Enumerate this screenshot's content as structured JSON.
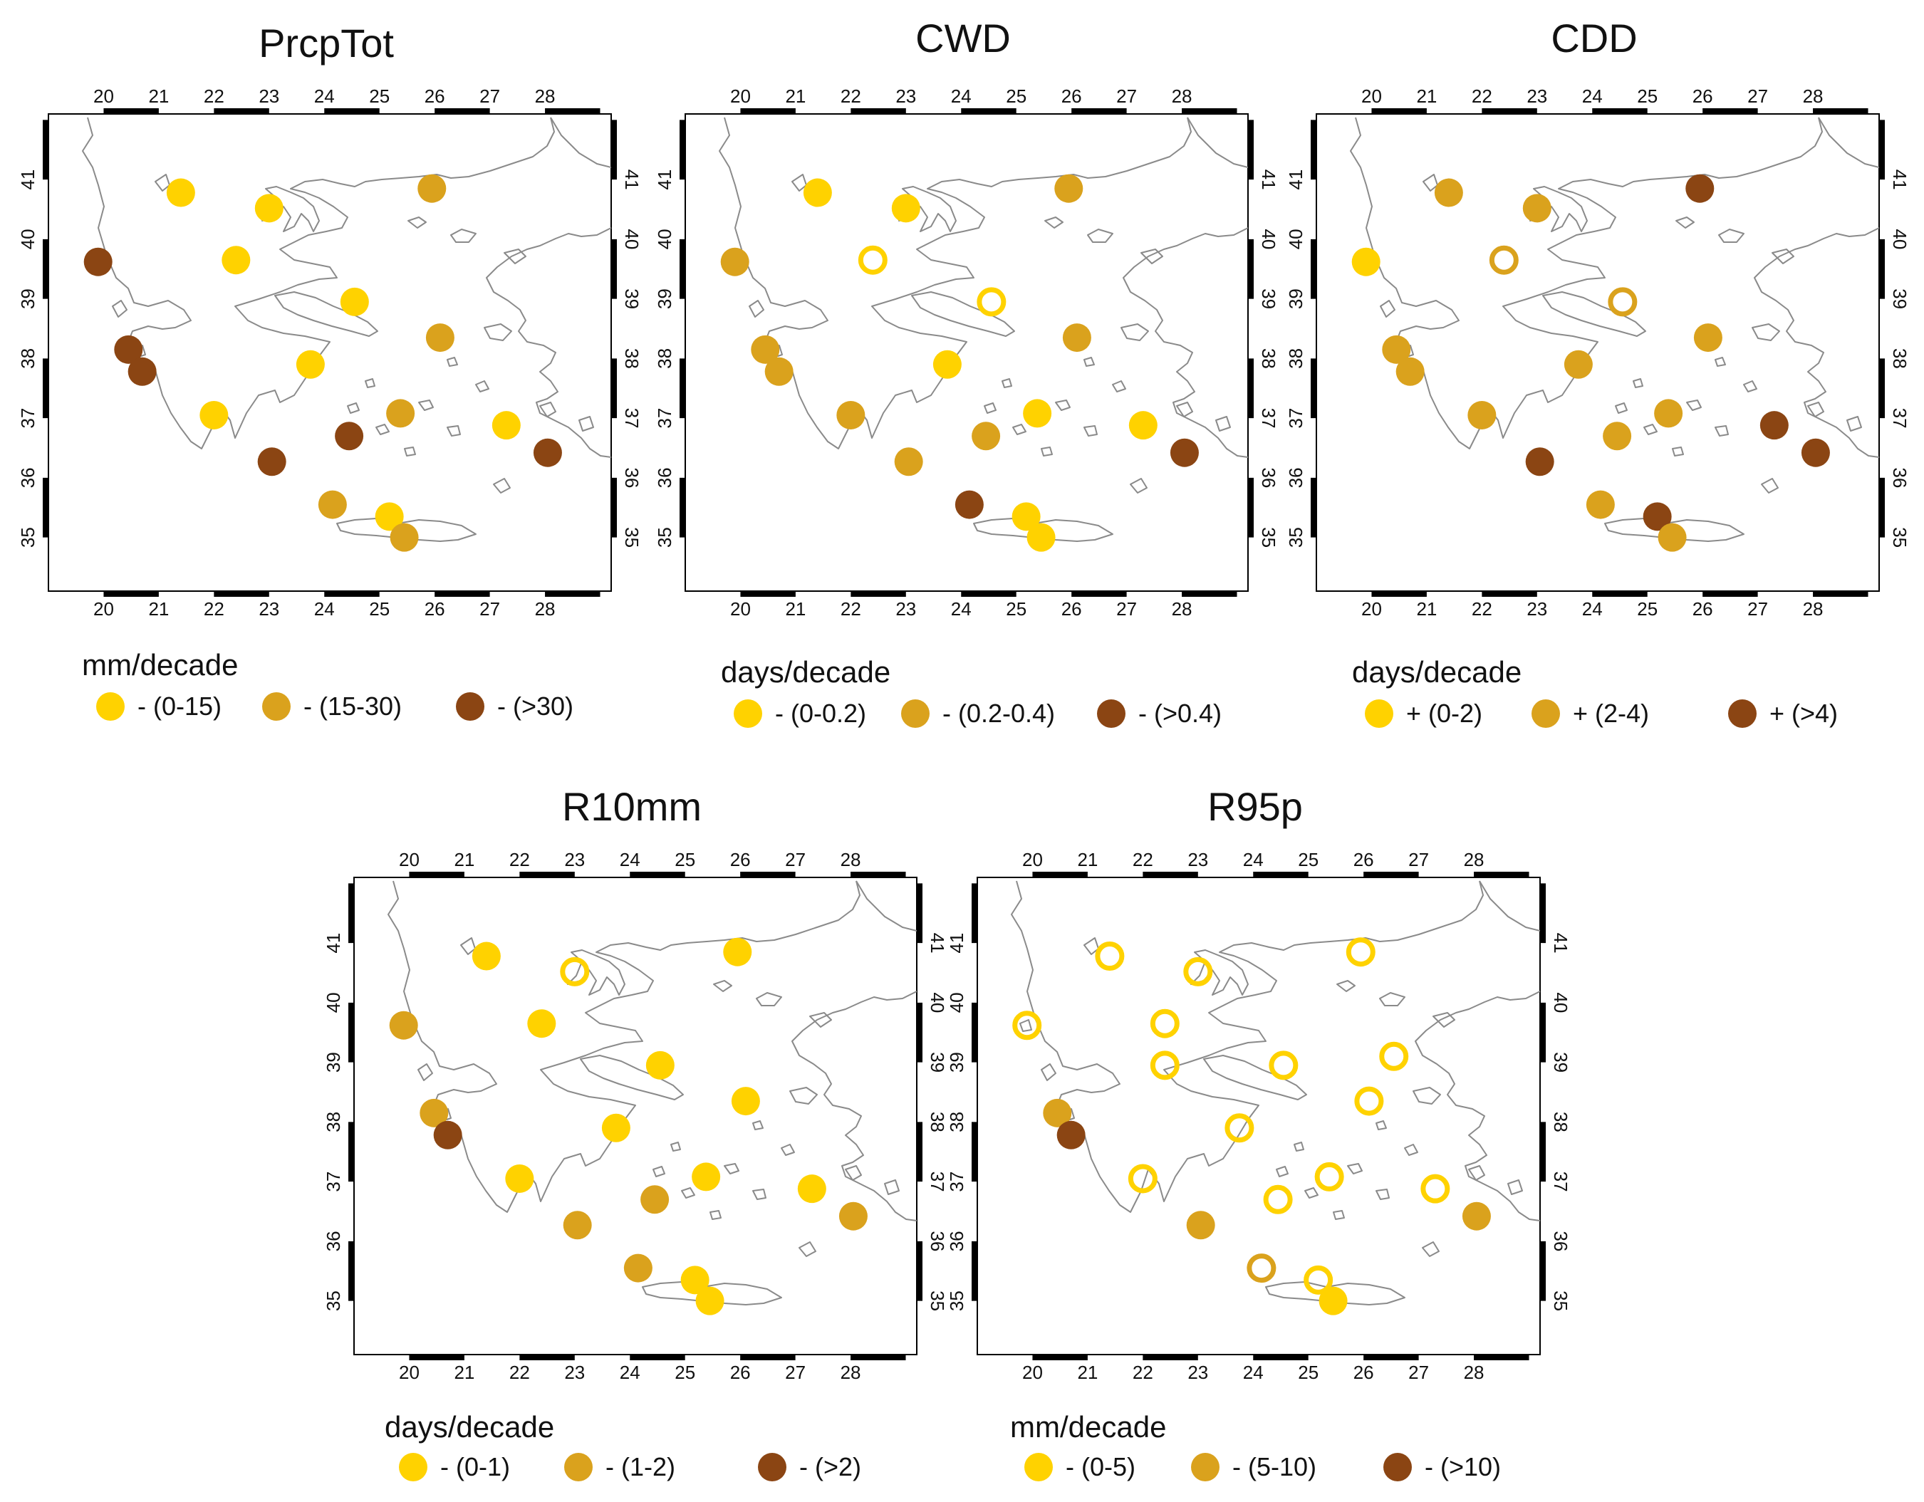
{
  "colors": {
    "low": "#ffd200",
    "mid": "#daa21d",
    "high": "#8b4513",
    "frame": "#000000",
    "coast": "#8a8a8a"
  },
  "axes": {
    "lon_ticks": [
      "20",
      "21",
      "22",
      "23",
      "24",
      "25",
      "26",
      "27",
      "28"
    ],
    "lat_ticks": [
      "35",
      "36",
      "37",
      "38",
      "39",
      "40",
      "41"
    ]
  },
  "panels": [
    {
      "title": "PrcpTot",
      "unit": "mm/decade",
      "legend": [
        "- (0-15)",
        "- (15-30)",
        "- (>30)"
      ],
      "stations": [
        {
          "lon": 21.4,
          "lat": 40.78,
          "c": 0,
          "f": true
        },
        {
          "lon": 23.0,
          "lat": 40.52,
          "c": 0,
          "f": true
        },
        {
          "lon": 25.95,
          "lat": 40.85,
          "c": 1,
          "f": true
        },
        {
          "lon": 22.4,
          "lat": 39.65,
          "c": 0,
          "f": true
        },
        {
          "lon": 19.9,
          "lat": 39.62,
          "c": 2,
          "f": true
        },
        {
          "lon": 24.55,
          "lat": 38.95,
          "c": 0,
          "f": true
        },
        {
          "lon": 26.1,
          "lat": 38.35,
          "c": 1,
          "f": true
        },
        {
          "lon": 20.45,
          "lat": 38.15,
          "c": 2,
          "f": true
        },
        {
          "lon": 20.7,
          "lat": 37.78,
          "c": 2,
          "f": true
        },
        {
          "lon": 23.75,
          "lat": 37.9,
          "c": 0,
          "f": true
        },
        {
          "lon": 22.0,
          "lat": 37.05,
          "c": 0,
          "f": true
        },
        {
          "lon": 25.38,
          "lat": 37.08,
          "c": 1,
          "f": true
        },
        {
          "lon": 24.45,
          "lat": 36.7,
          "c": 2,
          "f": true
        },
        {
          "lon": 27.3,
          "lat": 36.88,
          "c": 0,
          "f": true
        },
        {
          "lon": 23.05,
          "lat": 36.27,
          "c": 2,
          "f": true
        },
        {
          "lon": 28.05,
          "lat": 36.42,
          "c": 2,
          "f": true
        },
        {
          "lon": 24.15,
          "lat": 35.55,
          "c": 1,
          "f": true
        },
        {
          "lon": 25.18,
          "lat": 35.35,
          "c": 0,
          "f": true
        },
        {
          "lon": 25.45,
          "lat": 35.0,
          "c": 1,
          "f": true
        }
      ]
    },
    {
      "title": "CWD",
      "unit": "days/decade",
      "legend": [
        "- (0-0.2)",
        "- (0.2-0.4)",
        "- (>0.4)"
      ],
      "stations": [
        {
          "lon": 21.4,
          "lat": 40.78,
          "c": 0,
          "f": true
        },
        {
          "lon": 23.0,
          "lat": 40.52,
          "c": 0,
          "f": true
        },
        {
          "lon": 25.95,
          "lat": 40.85,
          "c": 1,
          "f": true
        },
        {
          "lon": 22.4,
          "lat": 39.65,
          "c": 0,
          "f": false
        },
        {
          "lon": 19.9,
          "lat": 39.62,
          "c": 1,
          "f": true
        },
        {
          "lon": 24.55,
          "lat": 38.95,
          "c": 0,
          "f": false
        },
        {
          "lon": 26.1,
          "lat": 38.35,
          "c": 1,
          "f": true
        },
        {
          "lon": 20.45,
          "lat": 38.15,
          "c": 1,
          "f": true
        },
        {
          "lon": 20.7,
          "lat": 37.78,
          "c": 1,
          "f": true
        },
        {
          "lon": 23.75,
          "lat": 37.9,
          "c": 0,
          "f": true
        },
        {
          "lon": 22.0,
          "lat": 37.05,
          "c": 1,
          "f": true
        },
        {
          "lon": 25.38,
          "lat": 37.08,
          "c": 0,
          "f": true
        },
        {
          "lon": 24.45,
          "lat": 36.7,
          "c": 1,
          "f": true
        },
        {
          "lon": 27.3,
          "lat": 36.88,
          "c": 0,
          "f": true
        },
        {
          "lon": 23.05,
          "lat": 36.27,
          "c": 1,
          "f": true
        },
        {
          "lon": 28.05,
          "lat": 36.42,
          "c": 2,
          "f": true
        },
        {
          "lon": 24.15,
          "lat": 35.55,
          "c": 2,
          "f": true
        },
        {
          "lon": 25.18,
          "lat": 35.35,
          "c": 0,
          "f": true
        },
        {
          "lon": 25.45,
          "lat": 35.0,
          "c": 0,
          "f": true
        }
      ]
    },
    {
      "title": "CDD",
      "unit": "days/decade",
      "legend": [
        "+ (0-2)",
        "+ (2-4)",
        "+ (>4)"
      ],
      "stations": [
        {
          "lon": 21.4,
          "lat": 40.78,
          "c": 1,
          "f": true
        },
        {
          "lon": 23.0,
          "lat": 40.52,
          "c": 1,
          "f": true
        },
        {
          "lon": 25.95,
          "lat": 40.85,
          "c": 2,
          "f": true
        },
        {
          "lon": 22.4,
          "lat": 39.65,
          "c": 1,
          "f": false
        },
        {
          "lon": 19.9,
          "lat": 39.62,
          "c": 0,
          "f": true
        },
        {
          "lon": 24.55,
          "lat": 38.95,
          "c": 1,
          "f": false
        },
        {
          "lon": 26.1,
          "lat": 38.35,
          "c": 1,
          "f": true
        },
        {
          "lon": 20.45,
          "lat": 38.15,
          "c": 1,
          "f": true
        },
        {
          "lon": 20.7,
          "lat": 37.78,
          "c": 1,
          "f": true
        },
        {
          "lon": 23.75,
          "lat": 37.9,
          "c": 1,
          "f": true
        },
        {
          "lon": 22.0,
          "lat": 37.05,
          "c": 1,
          "f": true
        },
        {
          "lon": 25.38,
          "lat": 37.08,
          "c": 1,
          "f": true
        },
        {
          "lon": 24.45,
          "lat": 36.7,
          "c": 1,
          "f": true
        },
        {
          "lon": 27.3,
          "lat": 36.88,
          "c": 2,
          "f": true
        },
        {
          "lon": 23.05,
          "lat": 36.27,
          "c": 2,
          "f": true
        },
        {
          "lon": 28.05,
          "lat": 36.42,
          "c": 2,
          "f": true
        },
        {
          "lon": 24.15,
          "lat": 35.55,
          "c": 1,
          "f": true
        },
        {
          "lon": 25.18,
          "lat": 35.35,
          "c": 2,
          "f": true
        },
        {
          "lon": 25.45,
          "lat": 35.0,
          "c": 1,
          "f": true
        }
      ]
    },
    {
      "title": "R10mm",
      "unit": "days/decade",
      "legend": [
        "- (0-1)",
        "- (1-2)",
        "- (>2)"
      ],
      "stations": [
        {
          "lon": 21.4,
          "lat": 40.78,
          "c": 0,
          "f": true
        },
        {
          "lon": 23.0,
          "lat": 40.52,
          "c": 0,
          "f": false
        },
        {
          "lon": 25.95,
          "lat": 40.85,
          "c": 0,
          "f": true
        },
        {
          "lon": 22.4,
          "lat": 39.65,
          "c": 0,
          "f": true
        },
        {
          "lon": 19.9,
          "lat": 39.62,
          "c": 1,
          "f": true
        },
        {
          "lon": 24.55,
          "lat": 38.95,
          "c": 0,
          "f": true
        },
        {
          "lon": 26.1,
          "lat": 38.35,
          "c": 0,
          "f": true
        },
        {
          "lon": 20.45,
          "lat": 38.15,
          "c": 1,
          "f": true
        },
        {
          "lon": 20.7,
          "lat": 37.78,
          "c": 2,
          "f": true
        },
        {
          "lon": 23.75,
          "lat": 37.9,
          "c": 0,
          "f": true
        },
        {
          "lon": 22.0,
          "lat": 37.05,
          "c": 0,
          "f": true
        },
        {
          "lon": 25.38,
          "lat": 37.08,
          "c": 0,
          "f": true
        },
        {
          "lon": 24.45,
          "lat": 36.7,
          "c": 1,
          "f": true
        },
        {
          "lon": 27.3,
          "lat": 36.88,
          "c": 0,
          "f": true
        },
        {
          "lon": 23.05,
          "lat": 36.27,
          "c": 1,
          "f": true
        },
        {
          "lon": 28.05,
          "lat": 36.42,
          "c": 1,
          "f": true
        },
        {
          "lon": 24.15,
          "lat": 35.55,
          "c": 1,
          "f": true
        },
        {
          "lon": 25.18,
          "lat": 35.35,
          "c": 0,
          "f": true
        },
        {
          "lon": 25.45,
          "lat": 35.0,
          "c": 0,
          "f": true
        }
      ]
    },
    {
      "title": "R95p",
      "unit": "mm/decade",
      "legend": [
        "- (0-5)",
        "- (5-10)",
        "- (>10)"
      ],
      "stations": [
        {
          "lon": 21.4,
          "lat": 40.78,
          "c": 0,
          "f": false
        },
        {
          "lon": 23.0,
          "lat": 40.52,
          "c": 0,
          "f": false
        },
        {
          "lon": 25.95,
          "lat": 40.85,
          "c": 0,
          "f": false
        },
        {
          "lon": 22.4,
          "lat": 39.65,
          "c": 0,
          "f": false
        },
        {
          "lon": 19.9,
          "lat": 39.62,
          "c": 0,
          "f": false
        },
        {
          "lon": 22.4,
          "lat": 38.95,
          "c": 0,
          "f": false
        },
        {
          "lon": 24.55,
          "lat": 38.95,
          "c": 0,
          "f": false
        },
        {
          "lon": 26.55,
          "lat": 39.1,
          "c": 0,
          "f": false
        },
        {
          "lon": 26.1,
          "lat": 38.35,
          "c": 0,
          "f": false
        },
        {
          "lon": 20.45,
          "lat": 38.15,
          "c": 1,
          "f": true
        },
        {
          "lon": 20.7,
          "lat": 37.78,
          "c": 2,
          "f": true
        },
        {
          "lon": 23.75,
          "lat": 37.9,
          "c": 0,
          "f": false
        },
        {
          "lon": 22.0,
          "lat": 37.05,
          "c": 0,
          "f": false
        },
        {
          "lon": 25.38,
          "lat": 37.08,
          "c": 0,
          "f": false
        },
        {
          "lon": 24.45,
          "lat": 36.7,
          "c": 0,
          "f": false
        },
        {
          "lon": 27.3,
          "lat": 36.88,
          "c": 0,
          "f": false
        },
        {
          "lon": 23.05,
          "lat": 36.27,
          "c": 1,
          "f": true
        },
        {
          "lon": 28.05,
          "lat": 36.42,
          "c": 1,
          "f": true
        },
        {
          "lon": 24.15,
          "lat": 35.55,
          "c": 1,
          "f": false
        },
        {
          "lon": 25.18,
          "lat": 35.35,
          "c": 0,
          "f": false
        },
        {
          "lon": 25.45,
          "lat": 35.0,
          "c": 0,
          "f": true
        }
      ]
    }
  ]
}
